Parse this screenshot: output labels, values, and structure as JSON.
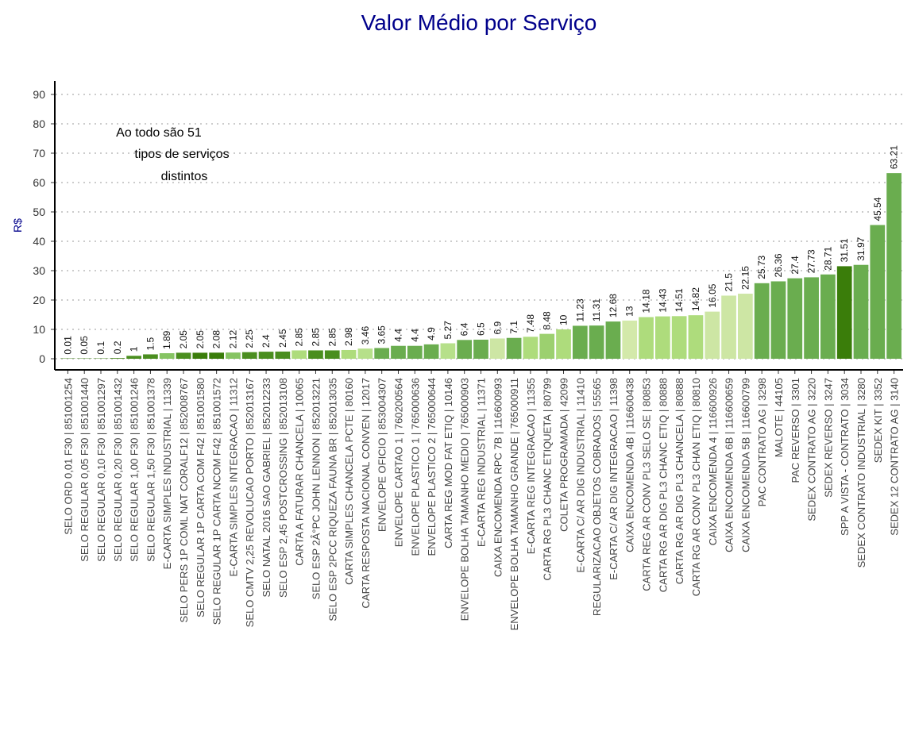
{
  "chart_data": {
    "type": "bar",
    "title": "Valor Médio por Serviço",
    "xlabel": "",
    "ylabel": "R$",
    "ylim": [
      0,
      90
    ],
    "yticks": [
      0,
      10,
      20,
      30,
      40,
      50,
      60,
      70,
      80,
      90
    ],
    "grid": "horizontal-dotted",
    "annotation": [
      "Ao todo são  51",
      "tipos de serviços",
      "distintos"
    ],
    "colors": {
      "title": "#00008b",
      "grid": "#bbbbbb",
      "axis": "#000000"
    },
    "categories": [
      "SELO ORD 0,01 F30 | 851001254",
      "SELO REGULAR 0,05 F30 | 851001440",
      "SELO REGULAR 0,10 F30 | 851001297",
      "SELO REGULAR 0,20 F30 | 851001432",
      "SELO REGULAR 1,00 F30 | 851001246",
      "SELO REGULAR 1,50 F30 | 851001378",
      "E-CARTA SIMPLES INDUSTRIAL | 11339",
      "SELO PERS 1P COML NAT CORALF12 | 852008767",
      "SELO REGULAR 1P CARTA COM F42 | 851001580",
      "SELO REGULAR 1P CARTA NCOM F42 | 851001572",
      "E-CARTA SIMPLES INTEGRACAO | 11312",
      "SELO CMTV 2,25 REVOLUCAO PORTO | 852013167",
      "SELO NATAL 2016 SAO GABRIEL | 852012233",
      "SELO ESP 2,45 POSTCROSSING | 852013108",
      "CARTA A FATURAR CHANCELA | 10065",
      "SELO ESP 2Â°PC JOHN LENNON | 852013221",
      "SELO ESP 2PCC RIQUEZA FAUNA BR | 852013035",
      "CARTA SIMPLES CHANCELA PCTE | 80160",
      "CARTA RESPOSTA NACIONAL CONVEN | 12017",
      "ENVELOPE OFICIO | 853004307",
      "ENVELOPE CARTAO 1 | 760200564",
      "ENVELOPE PLASTICO 1 | 765000636",
      "ENVELOPE PLASTICO 2 | 765000644",
      "CARTA REG MOD FAT ETIQ | 10146",
      "ENVELOPE BOLHA TAMANHO MEDIO | 765000903",
      "E-CARTA REG INDUSTRIAL | 11371",
      "CAIXA ENCOMENDA RPC 7B | 116600993",
      "ENVELOPE BOLHA TAMANHO GRANDE | 765000911",
      "E-CARTA REG INTEGRACAO | 11355",
      "CARTA RG PL3 CHANC ETIQUETA | 80799",
      "COLETA PROGRAMADA | 42099",
      "E-CARTA C/ AR DIG INDUSTRIAL | 11410",
      "REGULARIZACAO OBJETOS COBRADOS | 55565",
      "E-CARTA C/ AR DIG INTEGRACAO | 11398",
      "CAIXA ENCOMENDA 4B | 116600438",
      "CARTA REG AR CONV PL3 SELO SE | 80853",
      "CARTA RG AR DIG PL3 CHANC ETIQ | 80888",
      "CARTA RG AR DIG PL3  CHANCELA | 80888",
      "CARTA RG AR CONV PL3 CHAN ETIQ | 80810",
      "CAIXA ENCOMENDA 4 | 116600926",
      "CAIXA ENCOMENDA 6B | 116600659",
      "CAIXA ENCOMENDA 5B | 116600799",
      "PAC CONTRATO AG | 3298",
      "MALOTE | 44105",
      "PAC REVERSO | 3301",
      "SEDEX CONTRATO AG | 3220",
      "SEDEX REVERSO | 3247",
      "SPP A VISTA - CONTRATO | 3034",
      "SEDEX CONTRATO INDUSTRIAL | 3280",
      "SEDEX KIT | 3352",
      "SEDEX 12 CONTRATO AG | 3140"
    ],
    "values": [
      0.01,
      0.05,
      0.1,
      0.2,
      1,
      1.5,
      1.89,
      2.05,
      2.05,
      2.08,
      2.12,
      2.25,
      2.4,
      2.45,
      2.85,
      2.85,
      2.85,
      2.98,
      3.46,
      3.65,
      4.4,
      4.4,
      4.9,
      5.27,
      6.4,
      6.5,
      6.9,
      7.1,
      7.48,
      8.48,
      10,
      11.23,
      11.31,
      12.68,
      13,
      14.18,
      14.43,
      14.51,
      14.82,
      16.05,
      21.5,
      22.15,
      25.73,
      26.36,
      27.4,
      27.73,
      28.71,
      31.51,
      31.97,
      45.54,
      63.21
    ],
    "data_labels": [
      "0.01",
      "0.05",
      "0.1",
      "0.2",
      "1",
      "1.5",
      "1.89",
      "2.05",
      "2.05",
      "2.08",
      "2.12",
      "2.25",
      "2.4",
      "2.45",
      "2.85",
      "2.85",
      "2.85",
      "2.98",
      "3.46",
      "3.65",
      "4.4",
      "4.4",
      "4.9",
      "5.27",
      "6.4",
      "6.5",
      "6.9",
      "7.1",
      "7.48",
      "8.48",
      "10",
      "11.23",
      "11.31",
      "12.68",
      "13",
      "14.18",
      "14.43",
      "14.51",
      "14.82",
      "16.05",
      "21.5",
      "22.15",
      "25.73",
      "26.36",
      "27.4",
      "27.73",
      "28.71",
      "31.51",
      "31.97",
      "45.54",
      "63.21"
    ],
    "bar_colors": [
      "#3a7d0a",
      "#3a7d0a",
      "#3a7d0a",
      "#3a7d0a",
      "#4a8e1f",
      "#4a8e1f",
      "#86c463",
      "#4a8e1f",
      "#3a7d0a",
      "#3a7d0a",
      "#86c463",
      "#4a8e1f",
      "#4a8e1f",
      "#4a8e1f",
      "#aedc7c",
      "#4a8e1f",
      "#4a8e1f",
      "#aedc7c",
      "#b6e08a",
      "#6aad4f",
      "#6aad4f",
      "#6aad4f",
      "#6aad4f",
      "#b6e08a",
      "#6aad4f",
      "#6aad4f",
      "#cde6a4",
      "#6aad4f",
      "#aedc7c",
      "#9cd06f",
      "#aedc7c",
      "#6aad4f",
      "#6aad4f",
      "#6aad4f",
      "#d3e9aa",
      "#aedc7c",
      "#aedc7c",
      "#aedc7c",
      "#aedc7c",
      "#cde6a4",
      "#cde6a4",
      "#cde6a4",
      "#6aad4f",
      "#6aad4f",
      "#6aad4f",
      "#6aad4f",
      "#6aad4f",
      "#3a7d0a",
      "#6aad4f",
      "#6aad4f",
      "#6aad4f"
    ]
  }
}
